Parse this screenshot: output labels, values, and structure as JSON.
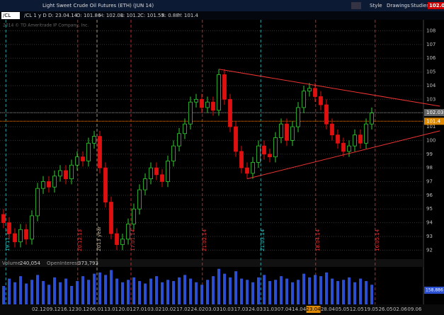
{
  "toolbar": {
    "title": "Light Sweet Crude Oil Futures (ETH) (JUN 14)",
    "buttons": [
      "Style",
      "Drawings",
      "Studies"
    ],
    "price": "102.06",
    "symbol": "/CL",
    "info": [
      "/CL 1 y D",
      "D: 23.04.14",
      "O: 101.86",
      "H: 102.08",
      "L: 101.2",
      "C: 101.55",
      "R: 0.88",
      "Y: 101.4"
    ],
    "watermark": "2014 © TD Ameritrade IP Company, Inc."
  },
  "chart_data": {
    "type": "candlestick",
    "open": [
      94.6,
      94.0,
      93.2,
      92.6,
      93.5,
      92.8,
      94.5,
      96.5,
      97.0,
      96.6,
      97.4,
      97.8,
      97.2,
      98.2,
      98.8,
      98.5,
      99.8,
      100.3,
      98.0,
      95.5,
      93.2,
      92.4,
      92.8,
      93.9,
      95.0,
      96.4,
      97.2,
      98.0,
      97.5,
      97.0,
      98.5,
      99.6,
      100.5,
      101.2,
      102.8,
      103.0,
      102.4,
      102.8,
      102.2,
      104.8,
      103.0,
      101.0,
      99.2,
      98.0,
      97.6,
      98.4,
      99.6,
      99.0,
      98.8,
      100.2,
      101.2,
      100.0,
      101.0,
      102.4,
      103.6,
      103.8,
      103.2,
      102.6,
      101.2,
      100.4,
      99.8,
      99.2,
      99.6,
      100.4,
      99.8,
      101.2
    ],
    "high": [
      95.0,
      94.4,
      93.6,
      93.9,
      93.9,
      94.9,
      96.9,
      97.4,
      97.4,
      97.8,
      98.2,
      98.2,
      98.6,
      99.2,
      99.2,
      100.2,
      100.7,
      100.7,
      98.4,
      95.9,
      93.6,
      93.2,
      94.3,
      95.4,
      96.8,
      97.6,
      98.4,
      98.4,
      97.9,
      98.9,
      100.0,
      100.9,
      101.6,
      103.2,
      103.4,
      103.4,
      103.2,
      103.2,
      105.2,
      105.2,
      103.4,
      101.4,
      99.6,
      98.4,
      98.8,
      100.0,
      100.0,
      99.4,
      100.6,
      101.6,
      101.6,
      101.4,
      102.8,
      104.0,
      104.2,
      104.2,
      103.6,
      103.0,
      101.6,
      100.8,
      100.2,
      100.0,
      100.8,
      100.8,
      101.6,
      102.4
    ],
    "low": [
      93.6,
      92.8,
      92.2,
      92.2,
      92.4,
      92.4,
      94.1,
      96.1,
      96.2,
      96.2,
      97.0,
      96.8,
      96.8,
      97.8,
      98.1,
      98.1,
      99.4,
      97.6,
      95.1,
      92.8,
      92.0,
      92.0,
      92.4,
      93.5,
      94.6,
      96.0,
      96.8,
      97.1,
      96.6,
      96.6,
      98.1,
      99.2,
      100.1,
      100.8,
      102.4,
      102.0,
      102.0,
      101.8,
      101.8,
      102.6,
      100.6,
      98.8,
      97.6,
      97.2,
      97.2,
      98.0,
      98.6,
      98.4,
      98.4,
      99.8,
      99.6,
      99.6,
      100.6,
      102.0,
      103.2,
      102.8,
      102.2,
      100.8,
      100.0,
      99.4,
      98.8,
      98.8,
      99.2,
      99.4,
      99.4,
      100.8
    ],
    "close": [
      94.0,
      93.2,
      92.6,
      93.5,
      92.8,
      94.5,
      96.5,
      97.0,
      96.6,
      97.4,
      97.8,
      97.2,
      98.2,
      98.8,
      98.5,
      99.8,
      100.3,
      98.0,
      95.5,
      93.2,
      92.4,
      92.8,
      93.9,
      95.0,
      96.4,
      97.2,
      98.0,
      97.5,
      97.0,
      98.5,
      99.6,
      100.5,
      101.2,
      102.8,
      103.0,
      102.4,
      102.8,
      102.2,
      104.8,
      103.0,
      101.0,
      99.2,
      98.0,
      97.6,
      98.4,
      99.6,
      99.0,
      98.8,
      100.2,
      101.2,
      100.0,
      101.0,
      102.4,
      103.6,
      103.8,
      103.2,
      102.6,
      101.2,
      100.4,
      99.8,
      99.2,
      99.6,
      100.4,
      99.8,
      101.2,
      102.0
    ],
    "volume": [
      150000,
      210000,
      180000,
      230000,
      170000,
      200000,
      240000,
      190000,
      160000,
      220000,
      180000,
      210000,
      150000,
      190000,
      230000,
      200000,
      250000,
      260000,
      240000,
      280000,
      210000,
      180000,
      200000,
      220000,
      190000,
      170000,
      210000,
      230000,
      180000,
      200000,
      190000,
      220000,
      240000,
      210000,
      180000,
      160000,
      200000,
      230000,
      290000,
      250000,
      220000,
      270000,
      210000,
      200000,
      180000,
      220000,
      240000,
      190000,
      200000,
      230000,
      210000,
      180000,
      200000,
      250000,
      220000,
      240000,
      230000,
      260000,
      210000,
      190000,
      200000,
      220000,
      180000,
      210000,
      190000,
      160000
    ],
    "up_color": "#33cc33",
    "down_color": "#e01010",
    "ylim": [
      91.5,
      108.8
    ],
    "yticks": [
      92,
      93,
      94,
      95,
      96,
      97,
      98,
      99,
      100,
      101,
      102,
      103,
      104,
      105,
      106,
      107,
      108
    ],
    "vlim": [
      0,
      300000
    ],
    "last_price": 102.03,
    "prev_close": 101.4,
    "trendlines": [
      {
        "from": [
          38,
          105.2
        ],
        "to": [
          77,
          102.5
        ]
      },
      {
        "from": [
          43,
          97.2
        ],
        "to": [
          77,
          100.7
        ]
      }
    ],
    "events": [
      "19.11.13",
      "20.12.13",
      "2013 year",
      "17.01.14",
      "21.02.14",
      "21.03.14",
      "18.04.14",
      "16.05.14"
    ],
    "time_labels": [
      "02.12",
      "09.12",
      "16.12",
      "30.12",
      "06.01",
      "13.01",
      "20.01",
      "27.01",
      "03.02",
      "10.02",
      "17.02",
      "24.02",
      "03.03",
      "10.03",
      "17.03",
      "24.03",
      "31.03",
      "07.04",
      "14.04",
      "23.04",
      "28.04",
      "05.05",
      "12.05",
      "19.05",
      "26.05",
      "02.06",
      "09.06"
    ],
    "volume_header": [
      "Volume",
      "240,054",
      "OpenInterest",
      "373,793"
    ],
    "volume_last": "158,886"
  }
}
